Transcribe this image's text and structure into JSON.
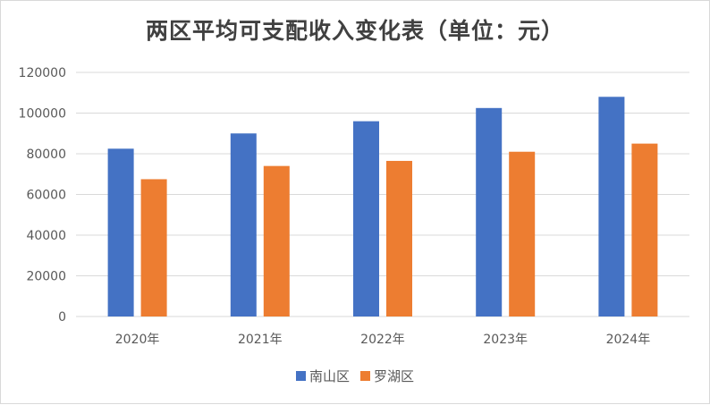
{
  "chart_data": {
    "type": "bar",
    "title": "两区平均可支配收入变化表（单位：元）",
    "categories": [
      "2020年",
      "2021年",
      "2022年",
      "2023年",
      "2024年"
    ],
    "series": [
      {
        "name": "南山区",
        "color": "#4472C4",
        "values": [
          82500,
          90000,
          96000,
          102500,
          108000
        ]
      },
      {
        "name": "罗湖区",
        "color": "#ED7D31",
        "values": [
          67500,
          74000,
          76500,
          81000,
          85000
        ]
      }
    ],
    "ylim": [
      0,
      120000
    ],
    "yticks": [
      "0",
      "20000",
      "40000",
      "60000",
      "80000",
      "100000",
      "120000"
    ],
    "grid": true,
    "legend_position": "bottom"
  }
}
